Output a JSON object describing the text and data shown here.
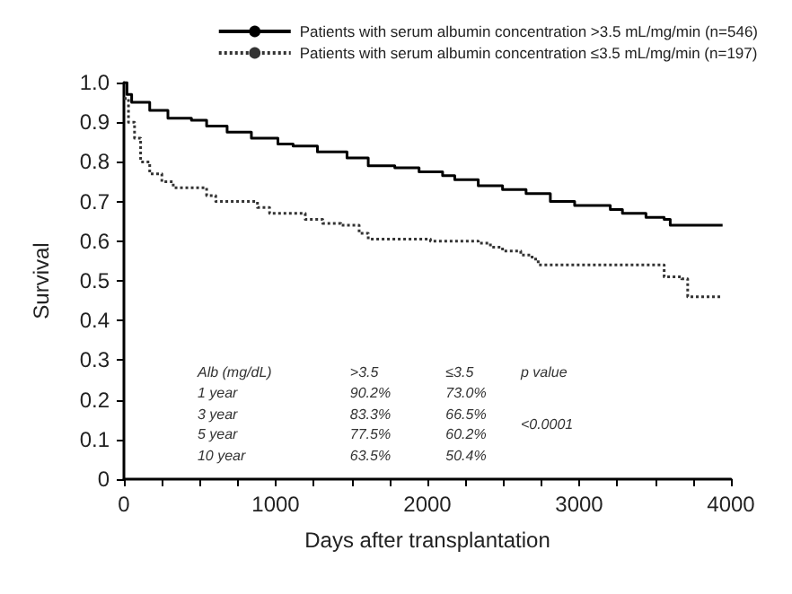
{
  "chart_data": {
    "type": "step",
    "xlabel": "Days after transplantation",
    "ylabel": "Survival",
    "series": [
      {
        "name": "Patients with serum albumin concentration >3.5 mL/mg/min (n=546)",
        "color": "#000000",
        "line_style": "solid",
        "x": [
          0,
          20,
          51,
          170,
          290,
          445,
          545,
          680,
          840,
          1015,
          1115,
          1275,
          1470,
          1610,
          1785,
          1945,
          2100,
          2180,
          2335,
          2495,
          2650,
          2810,
          2970,
          3205,
          3285,
          3440,
          3560,
          3600,
          3945
        ],
        "values": [
          1.0,
          0.97,
          0.95,
          0.93,
          0.91,
          0.905,
          0.89,
          0.875,
          0.86,
          0.845,
          0.84,
          0.825,
          0.81,
          0.79,
          0.785,
          0.775,
          0.765,
          0.755,
          0.74,
          0.73,
          0.72,
          0.7,
          0.69,
          0.68,
          0.67,
          0.66,
          0.655,
          0.64,
          0.64
        ]
      },
      {
        "name": "Patients with serum albumin concentration ≤3.5 mL/mg/min (n=197)",
        "color": "#333333",
        "line_style": "dotted",
        "x": [
          0,
          30,
          70,
          110,
          170,
          250,
          325,
          465,
          545,
          605,
          780,
          880,
          960,
          1155,
          1195,
          1310,
          1430,
          1550,
          1610,
          1945,
          2020,
          2335,
          2415,
          2495,
          2615,
          2690,
          2730,
          3540,
          3560,
          3675,
          3715,
          3945
        ],
        "values": [
          0.96,
          0.9,
          0.86,
          0.8,
          0.77,
          0.75,
          0.735,
          0.735,
          0.715,
          0.7,
          0.7,
          0.685,
          0.67,
          0.67,
          0.655,
          0.645,
          0.64,
          0.62,
          0.605,
          0.605,
          0.6,
          0.595,
          0.585,
          0.575,
          0.565,
          0.555,
          0.54,
          0.54,
          0.51,
          0.505,
          0.46,
          0.46
        ]
      }
    ],
    "xlim": [
      0,
      4000
    ],
    "xticks": [
      0,
      {
        "value": 250,
        "label": null
      },
      {
        "value": 500,
        "label": null
      },
      {
        "value": 750,
        "label": null
      },
      1000,
      {
        "value": 1250,
        "label": null
      },
      {
        "value": 1500,
        "label": null
      },
      {
        "value": 1750,
        "label": null
      },
      2000,
      {
        "value": 2250,
        "label": null
      },
      {
        "value": 2500,
        "label": null
      },
      {
        "value": 2750,
        "label": null
      },
      3000,
      {
        "value": 3250,
        "label": null
      },
      {
        "value": 3500,
        "label": null
      },
      {
        "value": 3750,
        "label": null
      },
      4000
    ],
    "ylim": [
      0,
      1.0
    ],
    "yticks": [
      0,
      0.1,
      0.2,
      0.3,
      0.4,
      0.5,
      0.6,
      0.7,
      0.8,
      0.9,
      {
        "value": 1.0,
        "label": "1.0"
      }
    ],
    "annotations": [
      "Alb (mg/dL)",
      ">3.5",
      "≤3.5",
      "p value",
      "1 year",
      "90.2%",
      "73.0%",
      "3 year",
      "83.3%",
      "66.5%",
      "5 year",
      "77.5%",
      "60.2%",
      "10 year",
      "63.5%",
      "50.4%",
      "<0.0001"
    ],
    "legend": "top right",
    "grid": false,
    "marker": "none"
  }
}
